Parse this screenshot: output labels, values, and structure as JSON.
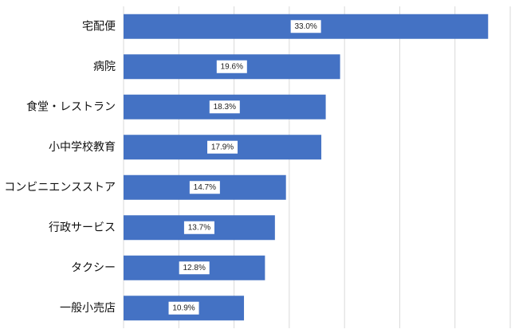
{
  "chart_data": {
    "type": "bar",
    "orientation": "horizontal",
    "title": "",
    "xlabel": "",
    "ylabel": "",
    "categories": [
      "宅配便",
      "病院",
      "食堂・レストラン",
      "小中学校教育",
      "コンビニエンスストア",
      "行政サービス",
      "タクシー",
      "一般小売店"
    ],
    "values": [
      33.0,
      19.6,
      18.3,
      17.9,
      14.7,
      13.7,
      12.8,
      10.9
    ],
    "data_labels": [
      "33.0%",
      "19.6%",
      "18.3%",
      "17.9%",
      "14.7%",
      "13.7%",
      "12.8%",
      "10.9%"
    ],
    "xlim": [
      0,
      35
    ],
    "grid": true,
    "legend": "none",
    "colors": {
      "bar": "#4472C4",
      "grid": "#D9D9D9",
      "label_box": "#FFFFFF"
    }
  }
}
